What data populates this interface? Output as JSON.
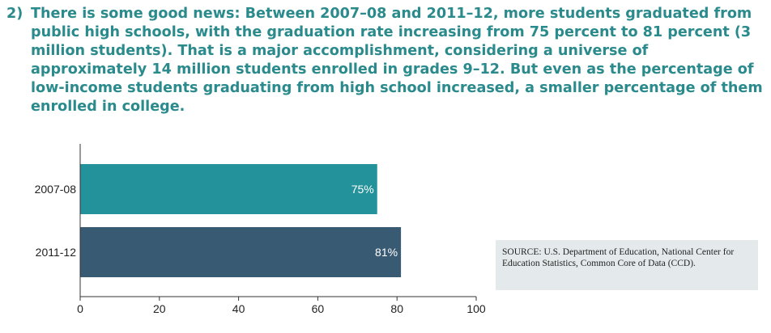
{
  "headline": {
    "number": "2)",
    "text": "There is some good news: Between 2007–08 and 2011–12, more students graduated from public high schools, with the graduation rate increasing from 75 percent to 81 percent (3 million students). That is a major accomplishment, considering a universe of approximately 14 million students enrolled in grades 9–12. But even as the percentage of low-income students graduating from high school increased, a smaller percentage of them enrolled in college."
  },
  "source": "SOURCE:  U.S. Department of Education, National Center for Education Statistics, Common Core of Data (CCD).",
  "chart_data": {
    "type": "bar",
    "orientation": "horizontal",
    "categories": [
      "2007-08",
      "2011-12"
    ],
    "values": [
      75,
      81
    ],
    "data_labels": [
      "75%",
      "81%"
    ],
    "colors": [
      "#24929a",
      "#395a73"
    ],
    "xlim": [
      0,
      100
    ],
    "x_ticks": [
      0,
      20,
      40,
      60,
      80,
      100
    ],
    "grid": false,
    "title": "",
    "xlabel": "",
    "ylabel": ""
  }
}
